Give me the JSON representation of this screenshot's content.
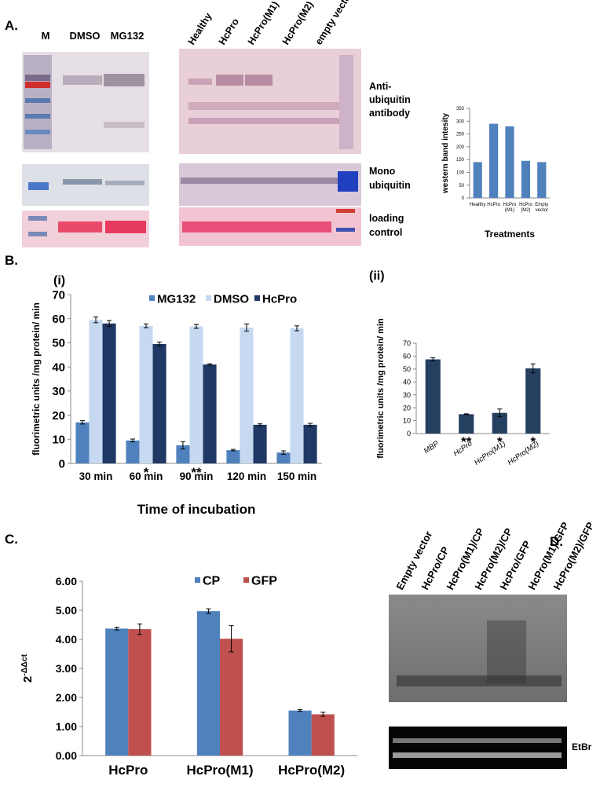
{
  "panel_labels": [
    "A.",
    "B.",
    "C.",
    "D."
  ],
  "gel_a": {
    "lanes_left": [
      "M",
      "DMSO",
      "MG132"
    ],
    "lanes_right": [
      "Healthy",
      "HcPro",
      "HcPro(M1)",
      "HcPro(M2)",
      "empty vector"
    ],
    "row_labels": [
      [
        "Anti-",
        "ubiquitin",
        "antibody"
      ],
      [
        "Mono",
        "ubiquitin"
      ],
      [
        "loading",
        "control"
      ]
    ]
  },
  "gel_d": {
    "lanes": [
      "Empty vector",
      "HcPro/CP",
      "HcPro(M1)/CP",
      "HcPro(M2)/CP",
      "HcPro/GFP",
      "HcPro(M1)/GFP",
      "HcPro(M2)/GFP"
    ],
    "stain": "EtBr"
  },
  "chart_data": [
    {
      "type": "bar",
      "ylabel": "western band intesity",
      "xlabel": "Treatments",
      "categories": [
        [
          "Healthy"
        ],
        [
          "HcPro"
        ],
        [
          "HcPro",
          "(M1)"
        ],
        [
          "HcPro",
          "(M2)"
        ],
        [
          "Empty",
          "vector"
        ]
      ],
      "values": [
        140,
        290,
        280,
        145,
        140
      ],
      "color": "#4f81bd",
      "ylim": [
        0,
        350
      ],
      "yticks": [
        0,
        50,
        100,
        150,
        200,
        250,
        300,
        350
      ]
    },
    {
      "type": "bar",
      "title": "(i)",
      "ylabel": "fluorimetric units /mg protein/ min",
      "xlabel": "Time of incubation",
      "categories": [
        "30 min",
        "60 min",
        "90 min",
        "120 min",
        "150 min"
      ],
      "series": [
        {
          "name": "MG132",
          "color": "#4f81bd",
          "values": [
            17,
            9.5,
            7.5,
            5.5,
            4.5
          ],
          "errors": [
            0.7,
            0.6,
            1.5,
            0.3,
            0.7
          ]
        },
        {
          "name": "DMSO",
          "color": "#c6d9f1",
          "values": [
            59.5,
            57,
            56.8,
            56.3,
            56
          ],
          "errors": [
            1.2,
            0.8,
            0.8,
            1.5,
            1
          ]
        },
        {
          "name": "HcPro",
          "color": "#1f3864",
          "values": [
            58,
            49.5,
            41,
            16,
            16
          ],
          "errors": [
            1.2,
            0.8,
            0.3,
            0.4,
            0.6
          ]
        }
      ],
      "significance": [
        null,
        "*",
        "**",
        null,
        null
      ],
      "legend": "top",
      "ylim": [
        0,
        70
      ],
      "yticks": [
        0,
        10,
        20,
        30,
        40,
        50,
        60,
        70
      ]
    },
    {
      "type": "bar",
      "title": "(ii)",
      "ylabel": "fluorimetric units /mg protein/ min",
      "categories": [
        "MBP",
        "HcPro",
        "HcPro(M1)",
        "HcPro(M2)"
      ],
      "values": [
        57.5,
        15,
        16,
        50.5
      ],
      "errors": [
        1.2,
        0.3,
        3,
        3.5
      ],
      "color": "#243f60",
      "significance": [
        null,
        "**",
        "*",
        "*"
      ],
      "ylim": [
        0,
        70
      ],
      "yticks": [
        0,
        10,
        20,
        30,
        40,
        50,
        60,
        70
      ]
    },
    {
      "type": "bar",
      "ylabel": {
        "base": "2",
        "exponent": "-ΔΔct"
      },
      "categories": [
        "HcPro",
        "HcPro(M1)",
        "HcPro(M2)"
      ],
      "series": [
        {
          "name": "CP",
          "color": "#4f81bd",
          "values": [
            4.37,
            4.97,
            1.55
          ],
          "errors": [
            0.05,
            0.08,
            0.03
          ]
        },
        {
          "name": "GFP",
          "color": "#c0504d",
          "values": [
            4.35,
            4.02,
            1.42
          ],
          "errors": [
            0.18,
            0.45,
            0.07
          ]
        }
      ],
      "legend": "top",
      "ylim": [
        0,
        6
      ],
      "yticks": [
        {
          "value": 0,
          "label": "0.00"
        },
        {
          "value": 1,
          "label": "1.00"
        },
        {
          "value": 2,
          "label": "2.00"
        },
        {
          "value": 3,
          "label": "3.00"
        },
        {
          "value": 4,
          "label": "4.00"
        },
        {
          "value": 5,
          "label": "5.00"
        },
        {
          "value": 6,
          "label": "6.00"
        }
      ]
    }
  ]
}
